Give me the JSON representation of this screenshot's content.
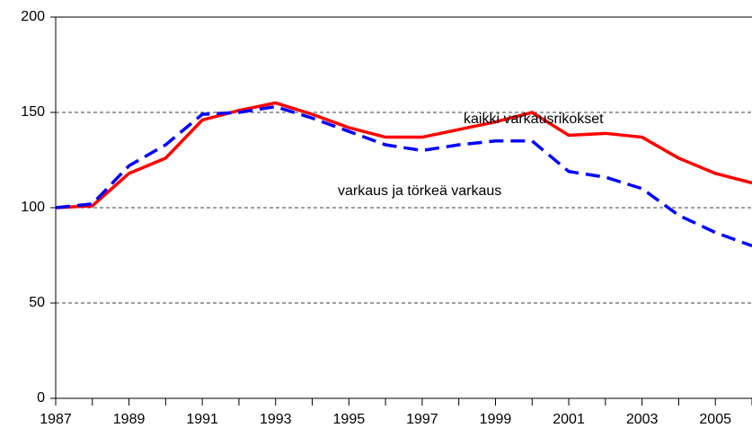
{
  "chart_data": {
    "type": "line",
    "x": [
      1987,
      1988,
      1989,
      1990,
      1991,
      1992,
      1993,
      1994,
      1995,
      1996,
      1997,
      1998,
      1999,
      2000,
      2001,
      2002,
      2003,
      2004,
      2005,
      2006
    ],
    "series": [
      {
        "name": "kaikki varkausrikokset",
        "color": "#ff0000",
        "dash": false,
        "values": [
          100,
          101,
          118,
          126,
          146,
          151,
          155,
          149,
          142,
          137,
          137,
          141,
          145,
          150,
          138,
          139,
          137,
          126,
          118,
          113
        ]
      },
      {
        "name": "varkaus ja törkeä varkaus",
        "color": "#0000ff",
        "dash": true,
        "values": [
          100,
          102,
          122,
          133,
          149,
          150,
          153,
          147,
          140,
          133,
          130,
          133,
          135,
          135,
          119,
          116,
          110,
          96,
          87,
          80
        ]
      }
    ],
    "xlim": [
      1987,
      2006
    ],
    "xticks": [
      1987,
      1989,
      1991,
      1993,
      1995,
      1997,
      1999,
      2001,
      2003,
      2005
    ],
    "ylim": [
      0,
      200
    ],
    "yticks": [
      0,
      50,
      100,
      150,
      200
    ],
    "grid": true
  }
}
